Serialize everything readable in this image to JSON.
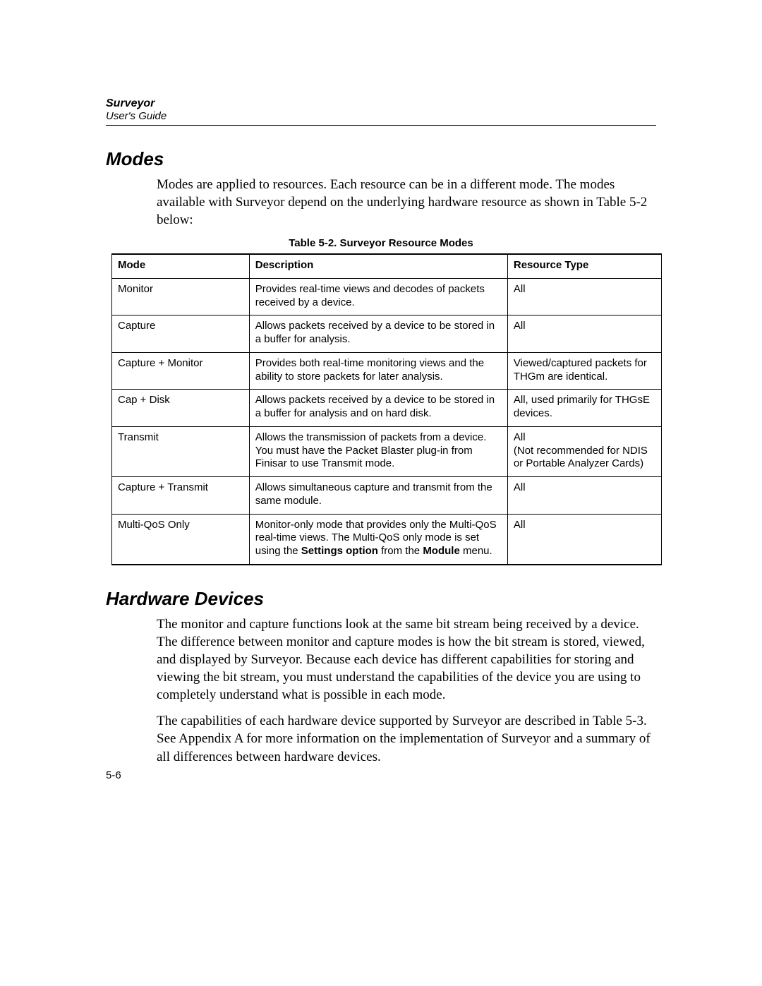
{
  "header": {
    "title": "Surveyor",
    "subtitle": "User's Guide"
  },
  "section1": {
    "heading": "Modes",
    "para": "Modes are applied to resources. Each resource can be in a different mode. The modes available with Surveyor depend on the underlying hardware resource as shown in Table 5-2 below:"
  },
  "table": {
    "caption": "Table 5-2. Surveyor Resource Modes",
    "columns": {
      "mode": "Mode",
      "description": "Description",
      "resource": "Resource Type"
    },
    "rows": [
      {
        "mode": "Monitor",
        "desc": "Provides real-time views and decodes of packets received by a device.",
        "res": "All"
      },
      {
        "mode": "Capture",
        "desc": "Allows packets received by a device to be stored in a buffer for analysis.",
        "res": "All"
      },
      {
        "mode": "Capture + Monitor",
        "desc": "Provides both real-time monitoring views and the ability to store packets for later analysis.",
        "res": "Viewed/captured packets for THGm are identical."
      },
      {
        "mode": "Cap + Disk",
        "desc": "Allows packets received by a device to be stored in a buffer for analysis and on hard disk.",
        "res": "All, used primarily for THGsE devices."
      },
      {
        "mode": "Transmit",
        "desc": "Allows the transmission of packets from a device. You must have the Packet Blaster plug-in from Finisar to use Transmit mode.",
        "res": "All\n(Not recommended for NDIS or Portable Analyzer Cards)"
      },
      {
        "mode": "Capture + Transmit",
        "desc": "Allows simultaneous capture and transmit from the same module.",
        "res": "All"
      },
      {
        "mode": "Multi-QoS Only",
        "desc_pre": "Monitor-only mode that provides only the Multi-QoS real-time views. The Multi-QoS only mode is set using the ",
        "desc_bold1": "Settings option",
        "desc_mid": " from the ",
        "desc_bold2": "Module",
        "desc_post": " menu.",
        "res": "All"
      }
    ]
  },
  "section2": {
    "heading": "Hardware Devices",
    "para1": "The monitor and capture functions look at the same bit stream being received by a device. The difference between monitor and capture modes is how the bit stream is stored, viewed, and displayed by Surveyor. Because each device has different capabilities for storing and viewing the bit stream, you must understand the capabilities of the device you are using to completely understand what is possible in each mode.",
    "para2": "The capabilities of each hardware device supported by Surveyor are described in Table 5-3. See Appendix A for more information on the implementation of Surveyor and a summary of all differences between hardware devices."
  },
  "pagenum": "5-6"
}
